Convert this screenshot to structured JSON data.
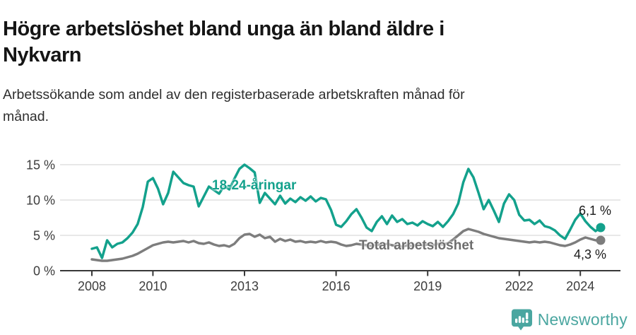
{
  "header": {
    "title": "Högre arbetslöshet bland unga än bland äldre i Nykvarn",
    "title_line1": "Högre arbetslöshet bland unga än bland äldre i",
    "title_line2": "Nykvarn",
    "subtitle": "Arbetssökande som andel av den registerbaserade arbetskraften månad för månad.",
    "subtitle_line1": "Arbetssökande som andel av den registerbaserade arbetskraften månad för",
    "subtitle_line2": "månad."
  },
  "annotations": {
    "series_young_label": "18-24-åringar",
    "series_total_label": "Total arbetslöshet",
    "end_value_young": "6,1 %",
    "end_value_total": "4,3 %"
  },
  "colors": {
    "young_line": "#13a18c",
    "total_line": "#7d7d7d",
    "total_label": "#6d6d6d",
    "grid": "#d9d9d9",
    "axis": "#383838",
    "tick_text": "#3d3d3d",
    "brand_teal": "#4aa6a0"
  },
  "chart_data": {
    "type": "line",
    "title": "Högre arbetslöshet bland unga än bland äldre i Nykvarn",
    "subtitle": "Arbetssökande som andel av den registerbaserade arbetskraften månad för månad.",
    "unit": "%",
    "x_start": 2008.0,
    "x_step_years": 0.16667,
    "xlim": [
      2008,
      2024.67
    ],
    "ylim": [
      0,
      15.5
    ],
    "grid": "horizontal",
    "legend_position": "inline-labels",
    "ytick_values": [
      0,
      5,
      10,
      15
    ],
    "ytick_labels": [
      "0 %",
      "5 %",
      "10 %",
      "15 %"
    ],
    "xtick_values": [
      2008,
      2010,
      2013,
      2016,
      2019,
      2022,
      2024
    ],
    "xtick_labels": [
      "2008",
      "2010",
      "2013",
      "2016",
      "2019",
      "2022",
      "2024"
    ],
    "series": [
      {
        "name": "Total arbetslöshet",
        "color": "#7d7d7d",
        "end_label": "4,3 %",
        "values": [
          1.6,
          1.5,
          1.4,
          1.4,
          1.5,
          1.6,
          1.7,
          1.9,
          2.1,
          2.4,
          2.8,
          3.2,
          3.6,
          3.8,
          4.0,
          4.1,
          4.0,
          4.1,
          4.2,
          4.0,
          4.2,
          3.9,
          3.8,
          4.0,
          3.7,
          3.5,
          3.6,
          3.4,
          3.8,
          4.6,
          5.1,
          5.2,
          4.8,
          5.1,
          4.6,
          4.8,
          4.1,
          4.5,
          4.2,
          4.4,
          4.1,
          4.2,
          4.0,
          4.1,
          4.0,
          4.2,
          4.0,
          4.1,
          4.0,
          3.7,
          3.5,
          3.6,
          3.8,
          3.7,
          3.6,
          3.5,
          3.7,
          3.6,
          3.8,
          3.6,
          3.5,
          3.4,
          3.6,
          3.5,
          3.7,
          3.6,
          3.7,
          3.6,
          3.8,
          3.7,
          3.9,
          4.4,
          5.0,
          5.6,
          5.9,
          5.7,
          5.5,
          5.2,
          5.0,
          4.8,
          4.6,
          4.5,
          4.4,
          4.3,
          4.2,
          4.1,
          4.0,
          4.1,
          4.0,
          4.1,
          4.0,
          3.8,
          3.6,
          3.5,
          3.7,
          4.0,
          4.4,
          4.7,
          4.5,
          4.3,
          4.3
        ]
      },
      {
        "name": "18-24-åringar",
        "color": "#13a18c",
        "end_label": "6,1 %",
        "values": [
          3.1,
          3.3,
          1.8,
          4.3,
          3.3,
          3.8,
          4.0,
          4.6,
          5.4,
          6.6,
          9.0,
          12.6,
          13.1,
          11.6,
          9.4,
          11.0,
          14.0,
          13.2,
          12.4,
          12.1,
          11.9,
          9.1,
          10.5,
          11.9,
          11.4,
          10.9,
          12.0,
          11.5,
          13.0,
          14.4,
          15.0,
          14.5,
          13.9,
          9.6,
          11.0,
          10.2,
          9.4,
          10.6,
          9.5,
          10.2,
          9.7,
          10.4,
          9.9,
          10.5,
          9.8,
          10.3,
          10.1,
          8.6,
          6.5,
          6.2,
          7.0,
          8.0,
          8.7,
          7.5,
          6.1,
          5.6,
          6.9,
          7.7,
          6.6,
          7.8,
          6.9,
          7.3,
          6.6,
          6.8,
          6.4,
          7.0,
          6.6,
          6.3,
          6.9,
          6.2,
          7.0,
          8.0,
          9.5,
          12.5,
          14.4,
          13.2,
          11.0,
          8.7,
          10.0,
          8.5,
          6.9,
          9.5,
          10.8,
          10.0,
          7.9,
          7.1,
          7.2,
          6.6,
          7.1,
          6.3,
          6.1,
          5.7,
          5.0,
          4.5,
          5.8,
          7.2,
          8.1,
          7.0,
          6.2,
          5.6,
          6.1
        ]
      }
    ]
  },
  "footer": {
    "brand": "Newsworthy",
    "logo_icon": "bar-chart-speech-bubble-icon"
  }
}
